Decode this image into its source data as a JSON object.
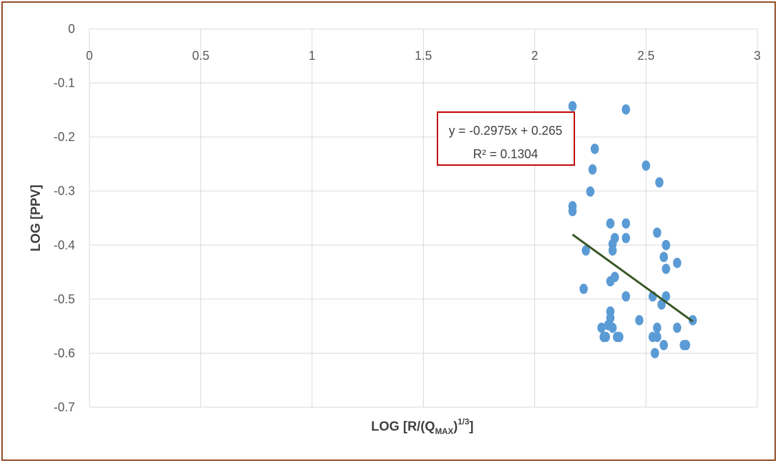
{
  "chart_data": {
    "type": "scatter",
    "xlabel": "LOG [R/(Q",
    "xlabel_sub": "MAX",
    "xlabel_tail": ")",
    "xlabel_sup": "1/3",
    "xlabel_end": "]",
    "ylabel": "LOG [PPV]",
    "xlim": [
      0,
      3
    ],
    "ylim": [
      -0.7,
      0
    ],
    "x_ticks": [
      "0",
      "0.5",
      "1",
      "1.5",
      "2",
      "2.5",
      "3"
    ],
    "x_tick_values": [
      0,
      0.5,
      1,
      1.5,
      2,
      2.5,
      3
    ],
    "y_ticks": [
      "0",
      "-0.1",
      "-0.2",
      "-0.3",
      "-0.4",
      "-0.5",
      "-0.6",
      "-0.7"
    ],
    "y_tick_values": [
      0,
      -0.1,
      -0.2,
      -0.3,
      -0.4,
      -0.5,
      -0.6,
      -0.7
    ],
    "grid": true,
    "point_color": "#5b9bd5",
    "trendline_color": "#375623",
    "equation_box_color": "#c00000",
    "trendline": {
      "slope": -0.2975,
      "intercept": 0.265,
      "x_range": [
        2.17,
        2.71
      ],
      "equation": "y = -0.2975x + 0.265",
      "r2_label": "R² = 0.1304"
    },
    "points": [
      [
        2.17,
        -0.143
      ],
      [
        2.41,
        -0.149
      ],
      [
        2.27,
        -0.222
      ],
      [
        2.26,
        -0.26
      ],
      [
        2.25,
        -0.301
      ],
      [
        2.5,
        -0.253
      ],
      [
        2.56,
        -0.284
      ],
      [
        2.17,
        -0.328
      ],
      [
        2.17,
        -0.337
      ],
      [
        2.34,
        -0.36
      ],
      [
        2.41,
        -0.36
      ],
      [
        2.55,
        -0.377
      ],
      [
        2.36,
        -0.387
      ],
      [
        2.41,
        -0.387
      ],
      [
        2.35,
        -0.398
      ],
      [
        2.59,
        -0.4
      ],
      [
        2.35,
        -0.41
      ],
      [
        2.23,
        -0.41
      ],
      [
        2.58,
        -0.422
      ],
      [
        2.64,
        -0.433
      ],
      [
        2.59,
        -0.444
      ],
      [
        2.36,
        -0.459
      ],
      [
        2.34,
        -0.467
      ],
      [
        2.22,
        -0.481
      ],
      [
        2.41,
        -0.495
      ],
      [
        2.53,
        -0.495
      ],
      [
        2.59,
        -0.495
      ],
      [
        2.57,
        -0.51
      ],
      [
        2.34,
        -0.523
      ],
      [
        2.34,
        -0.535
      ],
      [
        2.47,
        -0.539
      ],
      [
        2.71,
        -0.539
      ],
      [
        2.33,
        -0.548
      ],
      [
        2.3,
        -0.553
      ],
      [
        2.35,
        -0.553
      ],
      [
        2.55,
        -0.553
      ],
      [
        2.64,
        -0.553
      ],
      [
        2.31,
        -0.57
      ],
      [
        2.32,
        -0.57
      ],
      [
        2.37,
        -0.57
      ],
      [
        2.38,
        -0.57
      ],
      [
        2.53,
        -0.57
      ],
      [
        2.55,
        -0.57
      ],
      [
        2.58,
        -0.585
      ],
      [
        2.67,
        -0.585
      ],
      [
        2.68,
        -0.585
      ],
      [
        2.54,
        -0.6
      ]
    ]
  }
}
